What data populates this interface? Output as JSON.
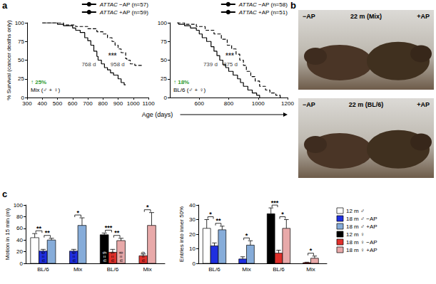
{
  "panel_labels": [
    "a",
    "b",
    "c"
  ],
  "chart_data": [
    {
      "type": "step",
      "ylabel": "% Survival (cancer deaths only)",
      "xlabel": "Age (days)",
      "xlim": [
        300,
        1100
      ],
      "xticks": [
        300,
        400,
        500,
        600,
        700,
        800,
        900,
        1000,
        1100
      ],
      "ylim": [
        0,
        100
      ],
      "yticks": [
        0,
        25,
        50,
        75,
        100
      ],
      "grid": false,
      "legend": "upper right",
      "significance": "***",
      "annotations": [
        "↑ 25%",
        "Mix (♂ + ♀)"
      ],
      "series": [
        {
          "name": "ATTAC −AP (n=57)",
          "color": "#000000",
          "line_style": "solid",
          "median": 768,
          "median_label": "768 d",
          "x": [
            400,
            500,
            540,
            600,
            620,
            650,
            680,
            700,
            720,
            740,
            760,
            768,
            790,
            810,
            830,
            850,
            870,
            900,
            920,
            940,
            950
          ],
          "values": [
            100,
            98,
            96,
            93,
            90,
            87,
            80,
            76,
            70,
            62,
            55,
            50,
            45,
            40,
            37,
            33,
            30,
            25,
            20,
            17,
            17
          ]
        },
        {
          "name": "ATTAC +AP (n=59)",
          "color": "#000000",
          "line_style": "dashed",
          "median": 958,
          "median_label": "958 d",
          "x": [
            400,
            540,
            620,
            700,
            760,
            800,
            830,
            860,
            880,
            900,
            920,
            950,
            958,
            980,
            1010,
            1060
          ],
          "values": [
            100,
            97,
            95,
            92,
            88,
            85,
            80,
            75,
            70,
            65,
            60,
            52,
            50,
            45,
            43,
            43
          ]
        }
      ]
    },
    {
      "type": "step",
      "xlim": [
        400,
        1200
      ],
      "xticks": [
        600,
        800,
        1000,
        1200
      ],
      "ylim": [
        0,
        100
      ],
      "yticks": [
        0,
        25,
        50,
        75,
        100
      ],
      "grid": false,
      "legend": "upper right",
      "significance": "***",
      "annotations": [
        "↑ 18%",
        "BL/6 (♂ + ♀)"
      ],
      "series": [
        {
          "name": "ATTAC −AP (n=58)",
          "color": "#000000",
          "line_style": "solid",
          "median": 739,
          "median_label": "739 d",
          "x": [
            450,
            460,
            500,
            540,
            580,
            600,
            620,
            650,
            680,
            700,
            720,
            739,
            760,
            780,
            800,
            830,
            860,
            880,
            900,
            930,
            960,
            990,
            1010
          ],
          "values": [
            100,
            98,
            96,
            93,
            90,
            85,
            80,
            75,
            68,
            62,
            56,
            50,
            44,
            40,
            35,
            30,
            25,
            20,
            15,
            10,
            6,
            3,
            0
          ]
        },
        {
          "name": "ATTAC +AP (n=51)",
          "color": "#000000",
          "line_style": "dashed",
          "median": 875,
          "median_label": "875 d",
          "x": [
            450,
            500,
            580,
            640,
            700,
            750,
            790,
            820,
            850,
            875,
            900,
            920,
            950,
            980,
            1010,
            1050,
            1080,
            1120,
            1150
          ],
          "values": [
            100,
            98,
            95,
            90,
            85,
            78,
            70,
            65,
            58,
            50,
            43,
            35,
            28,
            22,
            15,
            10,
            6,
            3,
            0
          ]
        }
      ]
    },
    {
      "type": "bar",
      "ylabel": "Motion in 15 min (m)",
      "categories": [
        "BL/6",
        "Mix",
        "BL/6",
        "Mix"
      ],
      "ylim": [
        0,
        100
      ],
      "yticks": [
        0,
        20,
        40,
        60,
        80,
        100
      ],
      "grid": false,
      "series": [
        {
          "name": "12 m ♂",
          "color": "#ffffff",
          "values": [
            44,
            null,
            null,
            null
          ],
          "errors": [
            7,
            null,
            null,
            null
          ]
        },
        {
          "name": "18 m ♂ −AP",
          "color": "#1f2fe0",
          "values": [
            21,
            21,
            null,
            null
          ],
          "errors": [
            3,
            3,
            null,
            null
          ],
          "n_labels": [
            "n = 6",
            "n = 6",
            null,
            null
          ]
        },
        {
          "name": "18 m ♂ +AP",
          "color": "#86acd9",
          "values": [
            40,
            65,
            null,
            null
          ],
          "errors": [
            3,
            13,
            null,
            null
          ]
        },
        {
          "name": "12 m ♀",
          "color": "#000000",
          "values": [
            null,
            null,
            49,
            null
          ],
          "errors": [
            null,
            null,
            3,
            null
          ],
          "n_labels": [
            null,
            null,
            "n = 9",
            null
          ]
        },
        {
          "name": "18 m ♀ −AP",
          "color": "#e0302b",
          "values": [
            null,
            null,
            19,
            13
          ],
          "errors": [
            null,
            null,
            5,
            3
          ],
          "n_labels": [
            null,
            null,
            "n = 9",
            "n = 9"
          ]
        },
        {
          "name": "18 m ♀ +AP",
          "color": "#e8a9a9",
          "values": [
            null,
            null,
            39,
            65
          ],
          "errors": [
            null,
            null,
            4,
            22
          ],
          "n_labels": [
            null,
            null,
            "n = 8",
            null
          ]
        }
      ],
      "significance": [
        {
          "category": 0,
          "pair": [
            "12 m ♂",
            "18 m ♂ −AP"
          ],
          "label": "**"
        },
        {
          "category": 0,
          "pair": [
            "18 m ♂ −AP",
            "18 m ♂ +AP"
          ],
          "label": "**"
        },
        {
          "category": 1,
          "pair": [
            "18 m ♂ −AP",
            "18 m ♂ +AP"
          ],
          "label": "*"
        },
        {
          "category": 2,
          "pair": [
            "12 m ♀",
            "18 m ♀ −AP"
          ],
          "label": "***"
        },
        {
          "category": 2,
          "pair": [
            "18 m ♀ −AP",
            "18 m ♀ +AP"
          ],
          "label": "**"
        },
        {
          "category": 3,
          "pair": [
            "18 m ♀ −AP",
            "18 m ♀ +AP"
          ],
          "label": "*"
        }
      ]
    },
    {
      "type": "bar",
      "ylabel": "Entries into inner 50%",
      "categories": [
        "BL/6",
        "Mix",
        "BL/6",
        "Mix"
      ],
      "ylim": [
        0,
        40
      ],
      "yticks": [
        0,
        10,
        20,
        30,
        40
      ],
      "grid": false,
      "legend": "right",
      "series": [
        {
          "name": "12 m ♂",
          "color": "#ffffff",
          "values": [
            24,
            null,
            null,
            null
          ],
          "errors": [
            6,
            null,
            null,
            null
          ]
        },
        {
          "name": "18 m ♂ −AP",
          "color": "#1f2fe0",
          "values": [
            12,
            3,
            null,
            null
          ],
          "errors": [
            2,
            1.5,
            null,
            null
          ]
        },
        {
          "name": "18 m ♂ +AP",
          "color": "#86acd9",
          "values": [
            23,
            12.5,
            null,
            null
          ],
          "errors": [
            2.5,
            3,
            null,
            null
          ]
        },
        {
          "name": "12 m ♀",
          "color": "#000000",
          "values": [
            null,
            null,
            34,
            null
          ],
          "errors": [
            null,
            null,
            4,
            null
          ]
        },
        {
          "name": "18 m ♀ −AP",
          "color": "#e0302b",
          "values": [
            null,
            null,
            7,
            0.5
          ],
          "errors": [
            null,
            null,
            2,
            0.3
          ]
        },
        {
          "name": "18 m ♀ +AP",
          "color": "#e8a9a9",
          "values": [
            null,
            null,
            24,
            3.5
          ],
          "errors": [
            null,
            null,
            6,
            1.5
          ]
        }
      ],
      "significance": [
        {
          "category": 0,
          "pair": [
            "12 m ♂",
            "18 m ♂ −AP"
          ],
          "label": "*"
        },
        {
          "category": 0,
          "pair": [
            "18 m ♂ −AP",
            "18 m ♂ +AP"
          ],
          "label": "**"
        },
        {
          "category": 1,
          "pair": [
            "18 m ♂ −AP",
            "18 m ♂ +AP"
          ],
          "label": "*"
        },
        {
          "category": 2,
          "pair": [
            "12 m ♀",
            "18 m ♀ −AP"
          ],
          "label": "***"
        },
        {
          "category": 2,
          "pair": [
            "18 m ♀ −AP",
            "18 m ♀ +AP"
          ],
          "label": "*"
        },
        {
          "category": 3,
          "pair": [
            "18 m ♀ −AP",
            "18 m ♀ +AP"
          ],
          "label": "*"
        }
      ]
    }
  ],
  "panel_b": [
    {
      "left": "−AP",
      "right": "+AP",
      "caption": "22 m (Mix)"
    },
    {
      "left": "−AP",
      "right": "+AP",
      "caption": "22 m (BL/6)"
    }
  ]
}
